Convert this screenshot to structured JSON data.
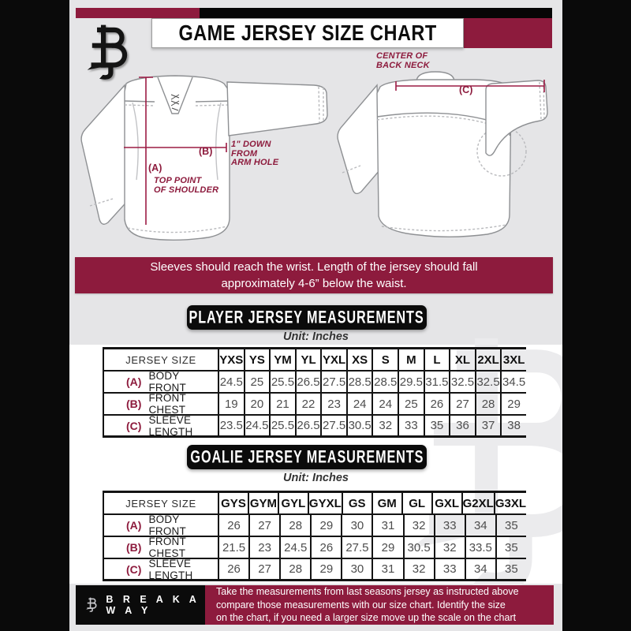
{
  "colors": {
    "maroon": "#8d1b3d",
    "bg": "#e5e5e7",
    "watermark": "#ebebed",
    "line": "#9c1b44"
  },
  "header": {
    "title": "GAME JERSEY SIZE CHART"
  },
  "diagram": {
    "front": {
      "a_key": "(A)",
      "a_lines": [
        "TOP POINT",
        "OF SHOULDER"
      ],
      "b_key": "(B)",
      "b_lines": [
        "1\" DOWN",
        "FROM",
        "ARM HOLE"
      ]
    },
    "back": {
      "c_key": "(C)",
      "c_lines": [
        "CENTER OF",
        "BACK NECK"
      ]
    }
  },
  "note_banner": {
    "lines": [
      "Sleeves should reach the wrist. Length of the jersey should fall",
      "approximately 4-6” below the waist."
    ]
  },
  "player_section": {
    "heading": "PLAYER JERSEY MEASUREMENTS",
    "unit": "Unit: Inches",
    "table": {
      "corner": "JERSEY SIZE",
      "sizes": [
        "YXS",
        "YS",
        "YM",
        "YL",
        "YXL",
        "XS",
        "S",
        "M",
        "L",
        "XL",
        "2XL",
        "3XL"
      ],
      "rows": [
        {
          "key": "(A)",
          "label": "BODY FRONT",
          "values": [
            "24.5",
            "25",
            "25.5",
            "26.5",
            "27.5",
            "28.5",
            "28.5",
            "29.5",
            "31.5",
            "32.5",
            "32.5",
            "34.5"
          ]
        },
        {
          "key": "(B)",
          "label": "FRONT CHEST",
          "values": [
            "19",
            "20",
            "21",
            "22",
            "23",
            "24",
            "24",
            "25",
            "26",
            "27",
            "28",
            "29"
          ]
        },
        {
          "key": "(C)",
          "label": "SLEEVE LENGTH",
          "values": [
            "23.5",
            "24.5",
            "25.5",
            "26.5",
            "27.5",
            "30.5",
            "32",
            "33",
            "35",
            "36",
            "37",
            "38"
          ]
        }
      ]
    }
  },
  "goalie_section": {
    "heading": "GOALIE JERSEY MEASUREMENTS",
    "unit": "Unit: Inches",
    "table": {
      "corner": "JERSEY SIZE",
      "sizes": [
        "GYS",
        "GYM",
        "GYL",
        "GYXL",
        "GS",
        "GM",
        "GL",
        "GXL",
        "G2XL",
        "G3XL"
      ],
      "rows": [
        {
          "key": "(A)",
          "label": "BODY FRONT",
          "values": [
            "26",
            "27",
            "28",
            "29",
            "30",
            "31",
            "32",
            "33",
            "34",
            "35"
          ]
        },
        {
          "key": "(B)",
          "label": "FRONT CHEST",
          "values": [
            "21.5",
            "23",
            "24.5",
            "26",
            "27.5",
            "29",
            "30.5",
            "32",
            "33.5",
            "35"
          ]
        },
        {
          "key": "(C)",
          "label": "SLEEVE LENGTH",
          "values": [
            "26",
            "27",
            "28",
            "29",
            "30",
            "31",
            "32",
            "33",
            "34",
            "35"
          ]
        }
      ]
    }
  },
  "footer": {
    "brand": "B R E A K A W A Y",
    "lines": [
      "Take the measurements from last seasons jersey as instructed above",
      "compare those measurements  with our size chart. Identify the size",
      "on the chart, if you need a larger size move up the scale on the chart"
    ]
  }
}
